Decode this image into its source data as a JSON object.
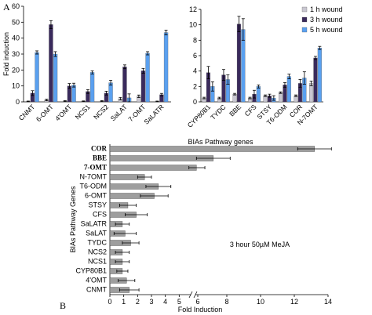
{
  "panel_labels": {
    "a": "A",
    "b": "B"
  },
  "colors": {
    "h1": "#c9c7d1",
    "h3": "#3a2a5c",
    "h5": "#5aa0ef",
    "panel_b_bar": "#9e9e9e"
  },
  "chart_data": [
    {
      "type": "bar",
      "panel": "A-left",
      "ylabel": "Fold induction",
      "ylim": [
        0,
        60
      ],
      "yticks": [
        "0",
        "10",
        "20",
        "30",
        "40",
        "50",
        "60"
      ],
      "categories": [
        "CNMT",
        "6-OMT",
        "4'OMT",
        "NCS1",
        "NCS2",
        "SaLAT",
        "7-OMT",
        "SaLATR"
      ],
      "series": [
        {
          "name": "1 h wound",
          "values": [
            0.3,
            1.2,
            0.5,
            0.4,
            0.5,
            2.0,
            3.5,
            0.3
          ],
          "err": [
            0.2,
            0.5,
            0.3,
            0.2,
            0.3,
            0.8,
            0.8,
            0.2
          ]
        },
        {
          "name": "3 h wound",
          "values": [
            5.5,
            48.5,
            10.0,
            6.5,
            5.5,
            22.0,
            19.5,
            4.5
          ],
          "err": [
            1.5,
            2.5,
            1.5,
            1.2,
            1.2,
            1.2,
            1.5,
            0.8
          ]
        },
        {
          "name": "5 h wound",
          "values": [
            31.0,
            30.0,
            10.5,
            18.5,
            12.0,
            2.5,
            30.5,
            43.5
          ],
          "err": [
            1.0,
            1.5,
            1.2,
            1.0,
            1.5,
            2.5,
            1.0,
            1.5
          ]
        }
      ]
    },
    {
      "type": "bar",
      "panel": "A-right",
      "ylim": [
        0,
        12
      ],
      "yticks": [
        "0",
        "2",
        "4",
        "6",
        "8",
        "10",
        "12"
      ],
      "categories": [
        "CYP80B1",
        "TYDC",
        "BBE",
        "CFS",
        "STSY",
        "T6-ODM",
        "COR",
        "N-7OMT"
      ],
      "xlabel": "BIAs Pathway genes",
      "legend": [
        "1 h wound",
        "3 h wound",
        "5 h wound"
      ],
      "series": [
        {
          "name": "1 h wound",
          "values": [
            0.5,
            0.5,
            1.0,
            0.5,
            0.8,
            1.2,
            0.8,
            2.4
          ],
          "err": [
            0.1,
            0.1,
            0.1,
            0.1,
            0.1,
            0.1,
            0.1,
            0.3
          ]
        },
        {
          "name": "3 h wound",
          "values": [
            3.8,
            3.5,
            10.1,
            1.0,
            0.8,
            2.2,
            2.4,
            5.7
          ],
          "err": [
            0.8,
            0.7,
            1.0,
            0.5,
            0.2,
            0.3,
            0.5,
            0.2
          ]
        },
        {
          "name": "5 h wound",
          "values": [
            2.0,
            2.9,
            9.4,
            2.0,
            0.5,
            3.3,
            3.1,
            7.0
          ],
          "err": [
            0.6,
            0.6,
            1.4,
            0.2,
            0.3,
            0.3,
            0.8,
            0.2
          ]
        }
      ]
    },
    {
      "type": "bar",
      "panel": "B",
      "orientation": "horizontal",
      "xlabel": "Fold Induction",
      "ylabel": "BIAs Pathway Genes",
      "annotation": "3 hour 50µM MeJA",
      "xticks": [
        "0",
        "1",
        "2",
        "3",
        "4",
        "5",
        "6",
        "8",
        "10",
        "12",
        "14"
      ],
      "axis_break": "between 6 and 8",
      "categories": [
        "COR",
        "BBE",
        "7-OMT",
        "N-7OMT",
        "T6-ODM",
        "6-OMT",
        "STSY",
        "CFS",
        "SaLATR",
        "SaLAT",
        "TYDC",
        "NCS2",
        "NCS1",
        "CYP80B1",
        "4'OMT",
        "CNMT"
      ],
      "values": [
        13.2,
        7.2,
        6.2,
        2.5,
        3.5,
        3.2,
        1.3,
        1.9,
        0.9,
        1.1,
        1.5,
        0.9,
        0.9,
        0.9,
        1.2,
        1.4
      ],
      "err": [
        1.0,
        1.0,
        0.5,
        0.5,
        0.9,
        1.0,
        0.6,
        0.8,
        0.5,
        0.8,
        0.6,
        0.5,
        0.5,
        0.4,
        0.6,
        0.7
      ]
    }
  ]
}
